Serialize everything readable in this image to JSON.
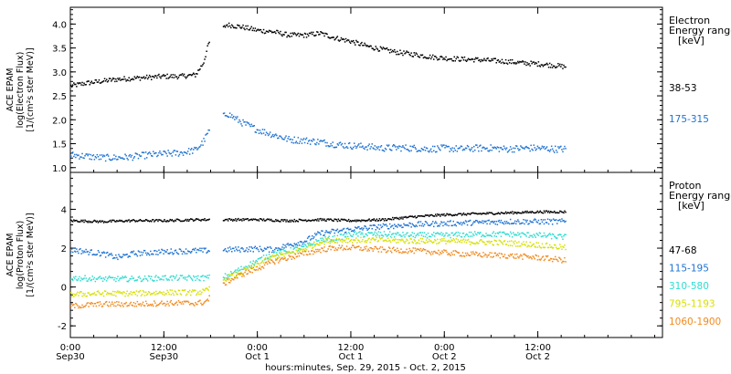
{
  "chart_data": [
    {
      "type": "scatter",
      "panel": "electron",
      "ylabel_lines": [
        "ACE EPAM",
        "log(Electron Flux)",
        "[1/(cm²s ster MeV)]"
      ],
      "ylim": [
        0.9,
        4.35
      ],
      "yticks": [
        "1.0",
        "1.5",
        "2.0",
        "2.5",
        "3.0",
        "3.5",
        "4.0"
      ],
      "legend_title": [
        "Electron",
        "Energy ranges",
        "[keV]"
      ],
      "x_unit": "hours since 0:00 Sep 30",
      "series": [
        {
          "name": "38-53",
          "color": "#000000",
          "x": [
            0,
            2,
            4,
            6,
            8,
            10,
            12,
            14,
            16,
            17,
            17.7,
            20,
            22,
            24,
            26,
            28,
            30,
            32,
            34,
            36,
            38,
            40,
            42,
            44,
            46,
            48,
            50,
            52,
            54,
            56,
            58,
            60,
            62,
            63.5
          ],
          "y": [
            2.72,
            2.78,
            2.82,
            2.86,
            2.88,
            2.9,
            2.92,
            2.92,
            2.95,
            3.2,
            3.62,
            4.0,
            3.95,
            3.88,
            3.85,
            3.78,
            3.78,
            3.82,
            3.72,
            3.65,
            3.55,
            3.48,
            3.42,
            3.38,
            3.33,
            3.3,
            3.28,
            3.27,
            3.25,
            3.23,
            3.2,
            3.18,
            3.15,
            3.12
          ]
        },
        {
          "name": "175-315",
          "color": "#1e73d2",
          "x": [
            0,
            2,
            4,
            6,
            8,
            10,
            12,
            14,
            16,
            17,
            17.7,
            20,
            22,
            24,
            26,
            28,
            30,
            32,
            34,
            36,
            38,
            40,
            42,
            44,
            46,
            48,
            50,
            52,
            54,
            56,
            58,
            60,
            62,
            63.5
          ],
          "y": [
            1.28,
            1.25,
            1.22,
            1.22,
            1.24,
            1.28,
            1.3,
            1.32,
            1.38,
            1.55,
            1.78,
            2.15,
            1.95,
            1.8,
            1.7,
            1.6,
            1.58,
            1.55,
            1.5,
            1.47,
            1.45,
            1.42,
            1.43,
            1.42,
            1.4,
            1.42,
            1.4,
            1.42,
            1.42,
            1.4,
            1.42,
            1.42,
            1.4,
            1.4
          ]
        }
      ]
    },
    {
      "type": "scatter",
      "panel": "proton",
      "ylabel_lines": [
        "ACE EPAM",
        "log(Proton Flux)",
        "[1/(cm²s ster MeV)]"
      ],
      "ylim": [
        -2.6,
        5.9
      ],
      "yticks": [
        "-2",
        "0",
        "2",
        "4"
      ],
      "legend_title": [
        "Proton",
        "Energy ranges",
        "[keV]"
      ],
      "x_unit": "hours since 0:00 Sep 30",
      "series": [
        {
          "name": "47-68",
          "color": "#000000",
          "x": [
            0,
            4,
            8,
            12,
            16,
            17.2,
            20,
            24,
            28,
            32,
            36,
            40,
            44,
            48,
            52,
            56,
            60,
            63.5
          ],
          "y": [
            3.45,
            3.4,
            3.45,
            3.45,
            3.5,
            3.5,
            3.5,
            3.5,
            3.45,
            3.5,
            3.45,
            3.5,
            3.65,
            3.75,
            3.8,
            3.85,
            3.9,
            3.9
          ]
        },
        {
          "name": "115-195",
          "color": "#1e73d2",
          "x": [
            0,
            4,
            6,
            8,
            12,
            16,
            17.2,
            20,
            24,
            26,
            28,
            30,
            32,
            36,
            40,
            44,
            48,
            52,
            56,
            60,
            63.5
          ],
          "y": [
            1.95,
            1.75,
            1.55,
            1.75,
            1.85,
            1.9,
            1.9,
            1.95,
            2.0,
            1.95,
            2.2,
            2.4,
            2.8,
            3.0,
            3.15,
            3.25,
            3.3,
            3.35,
            3.4,
            3.4,
            3.4
          ]
        },
        {
          "name": "310-580",
          "color": "#2fdcd0",
          "x": [
            0,
            4,
            8,
            12,
            16,
            17.2,
            20,
            22,
            24,
            26,
            28,
            30,
            32,
            34,
            36,
            40,
            44,
            48,
            52,
            56,
            60,
            63.5
          ],
          "y": [
            0.5,
            0.45,
            0.45,
            0.5,
            0.5,
            0.5,
            0.6,
            1.0,
            1.4,
            1.75,
            1.9,
            2.1,
            2.45,
            2.55,
            2.75,
            2.75,
            2.7,
            2.7,
            2.75,
            2.75,
            2.7,
            2.6
          ]
        },
        {
          "name": "795-1193",
          "color": "#d6e000",
          "x": [
            0,
            4,
            8,
            12,
            16,
            17.2,
            20,
            22,
            24,
            26,
            28,
            30,
            32,
            34,
            36,
            40,
            44,
            48,
            52,
            56,
            60,
            63.5
          ],
          "y": [
            -0.35,
            -0.3,
            -0.3,
            -0.25,
            -0.25,
            -0.2,
            0.5,
            0.8,
            1.2,
            1.6,
            1.75,
            2.0,
            2.35,
            2.45,
            2.45,
            2.45,
            2.4,
            2.4,
            2.35,
            2.3,
            2.2,
            2.05
          ]
        },
        {
          "name": "1060-1900",
          "color": "#f08a1e",
          "x": [
            0,
            4,
            8,
            12,
            16,
            17.2,
            20,
            22,
            24,
            26,
            28,
            30,
            32,
            34,
            36,
            40,
            44,
            48,
            52,
            56,
            60,
            63.5
          ],
          "y": [
            -0.95,
            -0.85,
            -0.85,
            -0.8,
            -0.8,
            -0.75,
            0.3,
            0.7,
            1.0,
            1.35,
            1.55,
            1.75,
            1.95,
            2.05,
            2.05,
            1.95,
            1.9,
            1.8,
            1.7,
            1.65,
            1.55,
            1.4
          ]
        }
      ]
    }
  ],
  "x_axis": {
    "xlim": [
      0,
      76
    ],
    "tick_hours": [
      0,
      12,
      24,
      36,
      48,
      60
    ],
    "tick_labels": [
      {
        "time": "0:00",
        "date": "Sep30"
      },
      {
        "time": "12:00",
        "date": "Sep30"
      },
      {
        "time": "0:00",
        "date": "Oct 1"
      },
      {
        "time": "12:00",
        "date": "Oct 1"
      },
      {
        "time": "0:00",
        "date": "Oct 2"
      },
      {
        "time": "12:00",
        "date": "Oct 2"
      }
    ],
    "xlabel": "hours:minutes, Sep. 29, 2015 - Oct. 2, 2015"
  }
}
